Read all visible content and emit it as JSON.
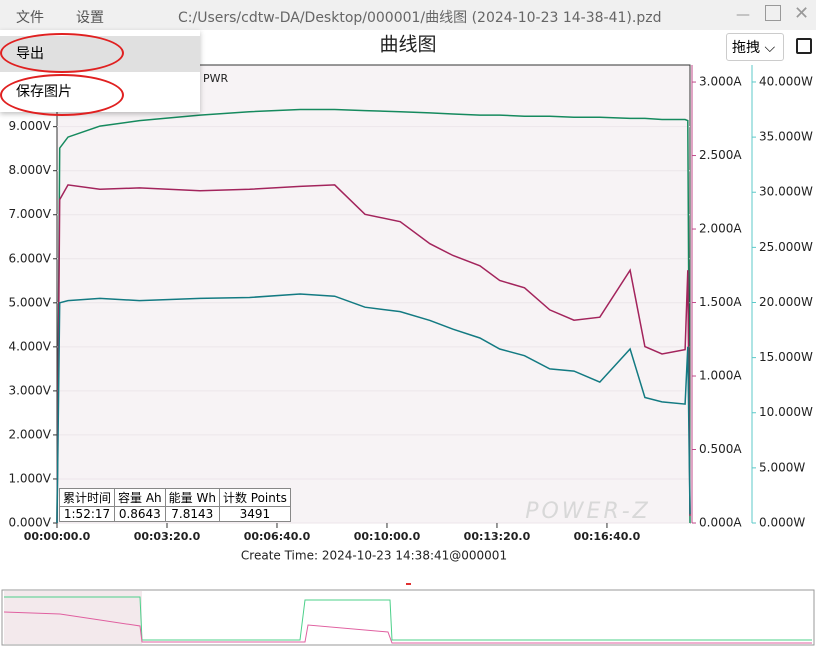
{
  "window": {
    "menu": [
      "文件",
      "设置"
    ],
    "title": "C:/Users/cdtw-DA/Desktop/000001/曲线图 (2024-10-23 14-38-41).pzd",
    "dropdown": [
      "导出",
      "保存图片"
    ],
    "mode": "拖拽"
  },
  "summary_table": {
    "headers": [
      "累计时间",
      "容量 Ah",
      "能量 Wh",
      "计数 Points"
    ],
    "values": [
      "1:52:17",
      0.8643,
      7.8143,
      3491
    ]
  },
  "chart_data": {
    "type": "line",
    "title": "曲线图",
    "xlabel": "Create Time: 2024-10-23 14:38:41@000001",
    "watermark": "POWER-Z",
    "x": [
      0,
      5,
      20,
      78,
      150,
      260,
      350,
      442,
      505,
      560,
      624,
      678,
      720,
      769,
      805,
      850,
      896,
      940,
      987,
      1042,
      1069,
      1100,
      1142,
      1147,
      1151
    ],
    "xlim": [
      0,
      1151
    ],
    "xticks": [
      {
        "value": 0,
        "label": "00:00:00.0"
      },
      {
        "value": 200,
        "label": "00:03:20.0"
      },
      {
        "value": 400,
        "label": "00:06:40.0"
      },
      {
        "value": 600,
        "label": "00:10:00.0"
      },
      {
        "value": 800,
        "label": "00:13:20.0"
      },
      {
        "value": 1000,
        "label": "00:16:40.0"
      }
    ],
    "ylim": [
      0,
      10.4
    ],
    "yticks": [
      {
        "value": 0,
        "label": "0.000V"
      },
      {
        "value": 1,
        "label": "1.000V"
      },
      {
        "value": 2,
        "label": "2.000V"
      },
      {
        "value": 3,
        "label": "3.000V"
      },
      {
        "value": 4,
        "label": "4.000V"
      },
      {
        "value": 5,
        "label": "5.000V"
      },
      {
        "value": 6,
        "label": "6.000V"
      },
      {
        "value": 7,
        "label": "7.000V"
      },
      {
        "value": 8,
        "label": "8.000V"
      },
      {
        "value": 9,
        "label": "9.000V"
      }
    ],
    "y2lim": [
      0,
      3.116
    ],
    "y2ticks": [
      {
        "value": 0,
        "label": "0.000A"
      },
      {
        "value": 0.5,
        "label": "0.500A"
      },
      {
        "value": 1,
        "label": "1.000A"
      },
      {
        "value": 1.5,
        "label": "1.500A"
      },
      {
        "value": 2,
        "label": "2.000A"
      },
      {
        "value": 2.5,
        "label": "2.500A"
      },
      {
        "value": 3,
        "label": "3.000A"
      }
    ],
    "y3lim": [
      0,
      41.54
    ],
    "y3ticks": [
      {
        "value": 0,
        "label": "0.000W"
      },
      {
        "value": 5,
        "label": "5.000W"
      },
      {
        "value": 10,
        "label": "10.000W"
      },
      {
        "value": 15,
        "label": "15.000W"
      },
      {
        "value": 20,
        "label": "20.000W"
      },
      {
        "value": 25,
        "label": "25.000W"
      },
      {
        "value": 30,
        "label": "30.000W"
      },
      {
        "value": 35,
        "label": "35.000W"
      },
      {
        "value": 40,
        "label": "40.000W"
      }
    ],
    "series": [
      {
        "name": "PWR",
        "color": "#168a5e",
        "axis": "y3",
        "values": [
          0,
          34,
          35,
          36,
          36.5,
          37,
          37.3,
          37.5,
          37.5,
          37.4,
          37.3,
          37.2,
          37.1,
          37,
          37,
          36.9,
          36.9,
          36.8,
          36.8,
          36.7,
          36.7,
          36.6,
          36.6,
          36.5,
          0
        ]
      },
      {
        "color": "#a3245c",
        "axis": "y2",
        "values": [
          0,
          2.2,
          2.3,
          2.27,
          2.28,
          2.26,
          2.27,
          2.29,
          2.3,
          2.1,
          2.05,
          1.9,
          1.82,
          1.75,
          1.65,
          1.6,
          1.45,
          1.38,
          1.4,
          1.72,
          1.2,
          1.15,
          1.18,
          1.72,
          0.05
        ]
      },
      {
        "color": "#137a82",
        "values": [
          0,
          5,
          5.05,
          5.1,
          5.05,
          5.1,
          5.12,
          5.2,
          5.15,
          4.9,
          4.8,
          4.6,
          4.4,
          4.2,
          3.95,
          3.8,
          3.5,
          3.45,
          3.2,
          3.95,
          2.85,
          2.75,
          2.7,
          4,
          0.2
        ]
      }
    ]
  }
}
